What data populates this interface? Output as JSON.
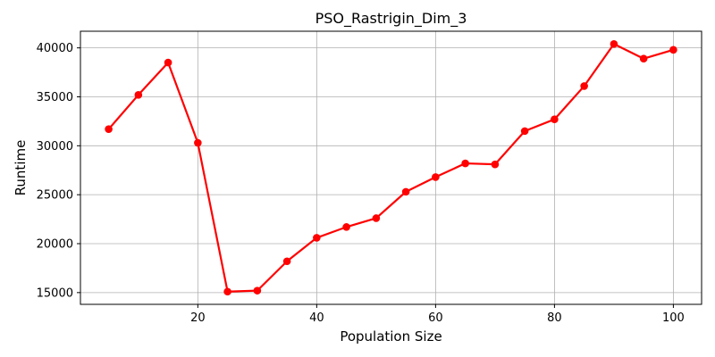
{
  "chart_data": {
    "type": "line",
    "title": "PSO_Rastrigin_Dim_3",
    "xlabel": "Population Size",
    "ylabel": "Runtime",
    "x": [
      5,
      10,
      15,
      20,
      25,
      30,
      35,
      40,
      45,
      50,
      55,
      60,
      65,
      70,
      75,
      80,
      85,
      90,
      95,
      100
    ],
    "series": [
      {
        "values": [
          31700,
          35200,
          38500,
          30300,
          15100,
          15200,
          18200,
          20600,
          21700,
          22600,
          25300,
          26800,
          28200,
          28100,
          31500,
          32700,
          36100,
          40400,
          38900,
          39800
        ],
        "color": "#ff0000",
        "marker": "circle"
      }
    ],
    "xlim": [
      0.25,
      104.75
    ],
    "ylim": [
      13800,
      41700
    ],
    "xticks": [
      20,
      40,
      60,
      80,
      100
    ],
    "yticks": [
      15000,
      20000,
      25000,
      30000,
      35000,
      40000
    ],
    "xtick_labels": [
      "20",
      "40",
      "60",
      "80",
      "100"
    ],
    "ytick_labels": [
      "15000",
      "20000",
      "25000",
      "30000",
      "35000",
      "40000"
    ],
    "grid": true
  }
}
